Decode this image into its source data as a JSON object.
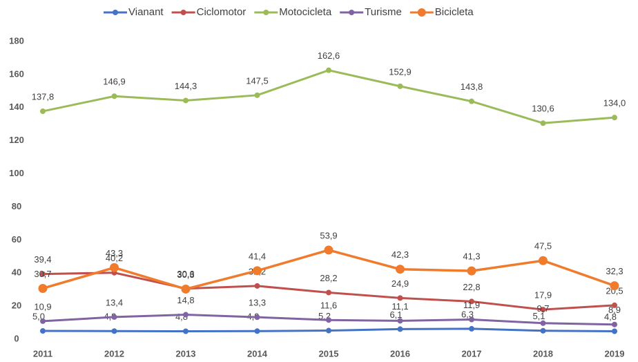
{
  "chart_data": {
    "type": "line",
    "categories": [
      "2011",
      "2012",
      "2013",
      "2014",
      "2015",
      "2016",
      "2017",
      "2018",
      "2019"
    ],
    "series": [
      {
        "name": "Vianant",
        "color": "#4472c4",
        "values": [
          5.0,
          4.9,
          4.8,
          4.9,
          5.2,
          6.1,
          6.3,
          5.1,
          4.8
        ],
        "value_labels": [
          "5,0",
          "4,9",
          "4,8",
          "4,9",
          "5,2",
          "6,1",
          "6,3",
          "5,1",
          "4,8"
        ]
      },
      {
        "name": "Ciclomotor",
        "color": "#c0504d",
        "values": [
          39.4,
          40.2,
          30.6,
          32.2,
          28.2,
          24.9,
          22.8,
          17.9,
          20.5
        ],
        "value_labels": [
          "39,4",
          "40,2",
          "30,6",
          "32,2",
          "28,2",
          "24,9",
          "22,8",
          "17,9",
          "20,5"
        ]
      },
      {
        "name": "Motocicleta",
        "color": "#9bbb59",
        "values": [
          137.8,
          146.9,
          144.3,
          147.5,
          162.6,
          152.9,
          143.8,
          130.6,
          134.0
        ],
        "value_labels": [
          "137,8",
          "146,9",
          "144,3",
          "147,5",
          "162,6",
          "152,9",
          "143,8",
          "130,6",
          "134,0"
        ]
      },
      {
        "name": "Turisme",
        "color": "#8064a2",
        "values": [
          10.9,
          13.4,
          14.8,
          13.3,
          11.6,
          11.1,
          11.9,
          9.7,
          8.9
        ],
        "value_labels": [
          "10,9",
          "13,4",
          "14,8",
          "13,3",
          "11,6",
          "11,1",
          "11,9",
          "9,7",
          "8,9"
        ]
      },
      {
        "name": "Bicicleta",
        "color": "#f07b2c",
        "values": [
          30.7,
          43.3,
          30.3,
          41.4,
          53.9,
          42.3,
          41.3,
          47.5,
          32.3
        ],
        "value_labels": [
          "30,7",
          "43,3",
          "30,3",
          "41,4",
          "53,9",
          "42,3",
          "41,3",
          "47,5",
          "32,3"
        ]
      }
    ],
    "ylim": [
      0,
      180
    ],
    "yticks": [
      0,
      20,
      40,
      60,
      80,
      100,
      120,
      140,
      160,
      180
    ],
    "grid": false,
    "legend": "top"
  }
}
